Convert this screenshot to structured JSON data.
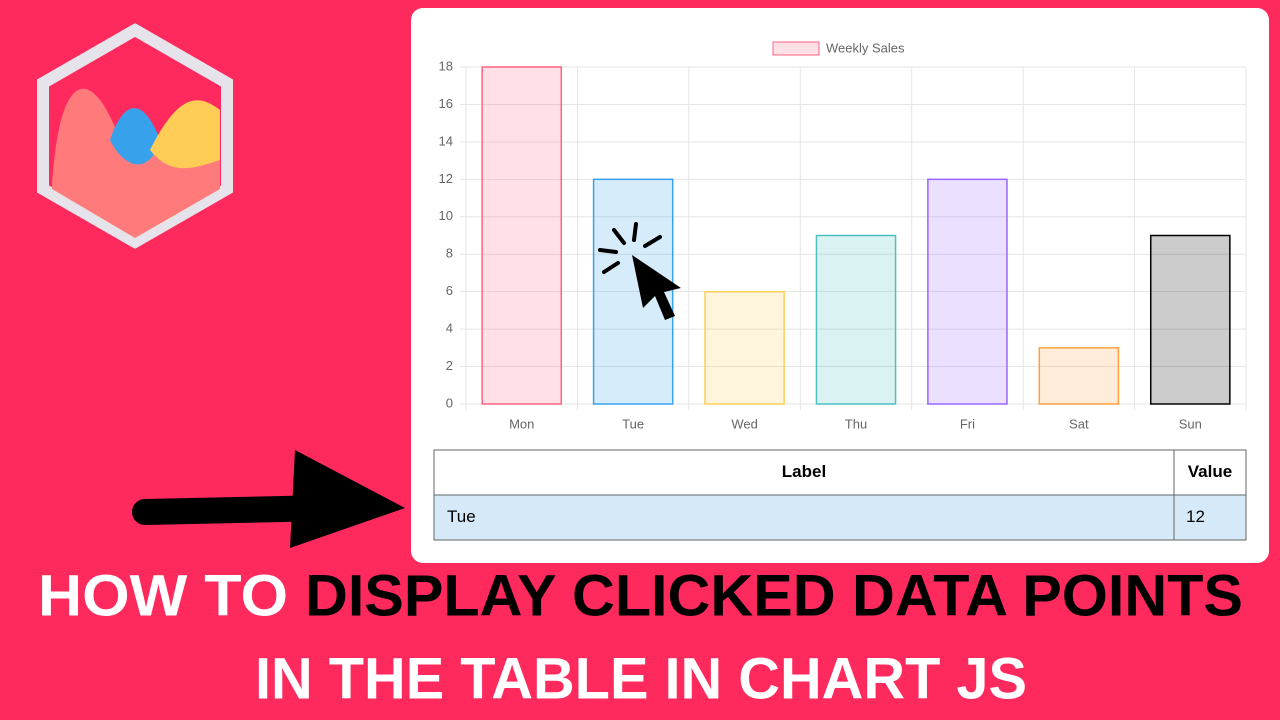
{
  "chart_data": {
    "type": "bar",
    "categories": [
      "Mon",
      "Tue",
      "Wed",
      "Thu",
      "Fri",
      "Sat",
      "Sun"
    ],
    "series": [
      {
        "name": "Weekly Sales",
        "values": [
          18,
          12,
          6,
          9,
          12,
          3,
          9
        ],
        "colors": [
          "rgba(255,99,132,0.2)",
          "rgba(54,162,235,0.2)",
          "rgba(255,206,86,0.2)",
          "rgba(75,192,192,0.2)",
          "rgba(153,102,255,0.2)",
          "rgba(255,159,64,0.2)",
          "rgba(0,0,0,0.2)"
        ],
        "border_colors": [
          "rgb(255,99,132)",
          "rgb(54,162,235)",
          "rgb(255,206,86)",
          "rgb(75,192,192)",
          "rgb(153,102,255)",
          "rgb(255,159,64)",
          "rgb(0,0,0)"
        ]
      }
    ],
    "ylim": [
      0,
      18
    ],
    "yticks": [
      0,
      2,
      4,
      6,
      8,
      10,
      12,
      14,
      16,
      18
    ],
    "grid": true,
    "legend": "top"
  },
  "table": {
    "header": [
      "Label",
      "Value"
    ],
    "rows": [
      [
        "Tue",
        12
      ]
    ]
  },
  "headline": {
    "line1": [
      "HOW TO",
      "DISPLAY CLICKED DATA POINTS"
    ],
    "line2": "IN THE TABLE IN CHART JS"
  }
}
